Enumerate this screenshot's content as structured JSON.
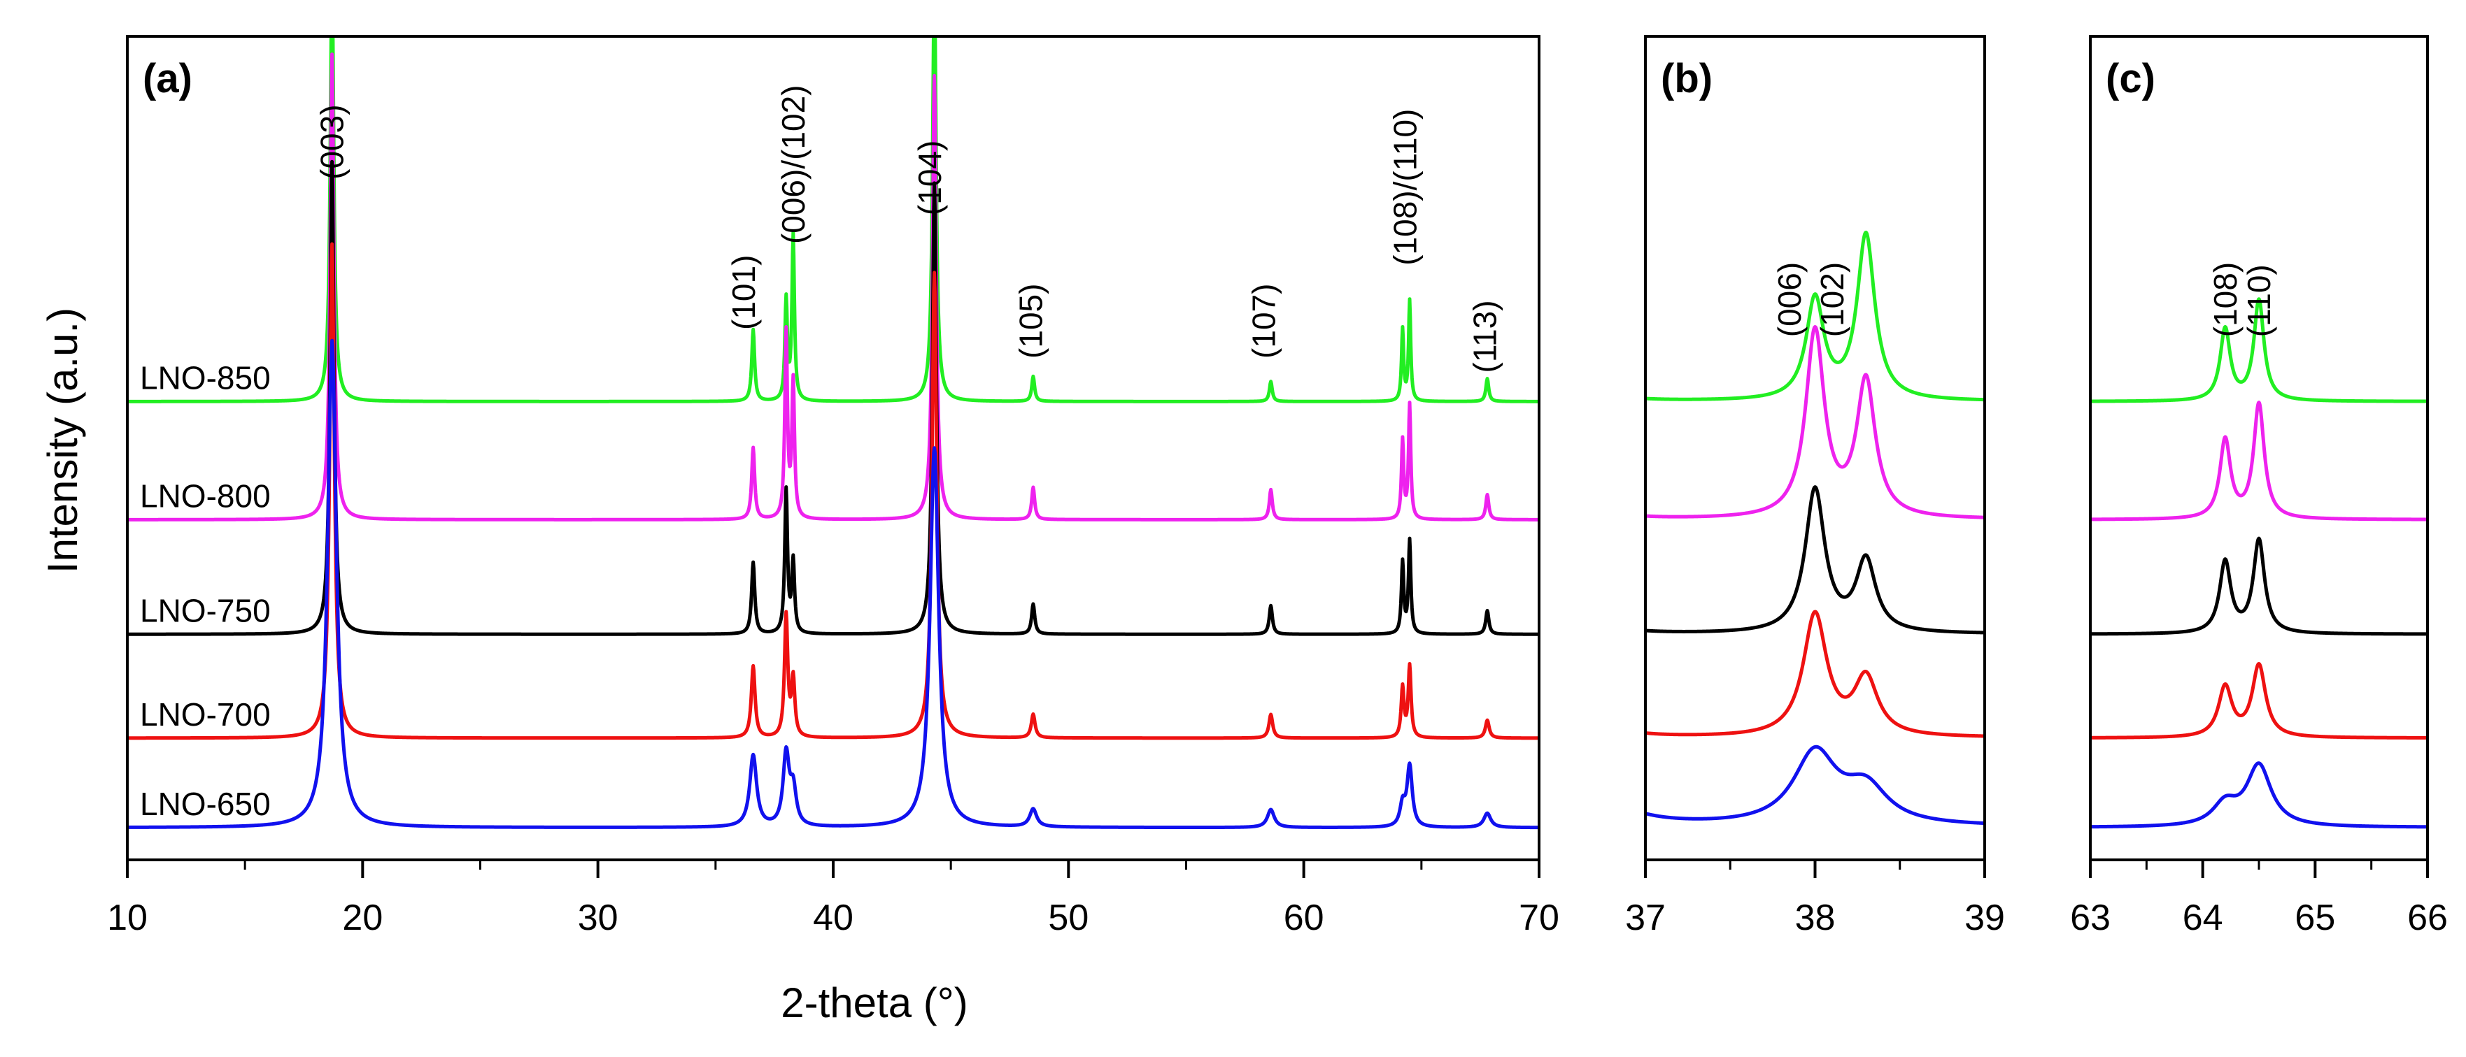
{
  "chart_data": {
    "type": "line",
    "title": "",
    "xlabel": "2-theta (°)",
    "ylabel": "Intensity (a.u.)",
    "series_offset_order": [
      "LNO-650",
      "LNO-700",
      "LNO-750",
      "LNO-800",
      "LNO-850"
    ],
    "series": [
      {
        "name": "LNO-850",
        "color": "#22ee22",
        "baseline": 6.4,
        "broad": 0.9,
        "scale": [
          6.0,
          1.0,
          1.4,
          2.3,
          5.9,
          0.35,
          0.28,
          1.0,
          1.4,
          0.32
        ]
      },
      {
        "name": "LNO-800",
        "color": "#ee22ee",
        "baseline": 4.75,
        "broad": 0.95,
        "scale": [
          6.5,
          1.0,
          2.6,
          1.9,
          6.2,
          0.45,
          0.42,
          1.1,
          1.6,
          0.35
        ]
      },
      {
        "name": "LNO-750",
        "color": "#000000",
        "baseline": 3.15,
        "broad": 1.0,
        "scale": [
          6.6,
          1.0,
          2.0,
          1.0,
          6.3,
          0.42,
          0.4,
          1.0,
          1.3,
          0.33
        ]
      },
      {
        "name": "LNO-700",
        "color": "#ee1111",
        "baseline": 1.7,
        "broad": 1.2,
        "scale": [
          6.9,
          1.0,
          1.7,
          0.8,
          6.5,
          0.33,
          0.33,
          0.7,
          1.0,
          0.25
        ]
      },
      {
        "name": "LNO-650",
        "color": "#1111ee",
        "baseline": 0.45,
        "broad": 2.2,
        "scale": [
          6.8,
          1.0,
          1.0,
          0.5,
          5.3,
          0.25,
          0.25,
          0.3,
          0.85,
          0.2
        ]
      }
    ],
    "peaks_2theta": [
      18.7,
      36.6,
      38.0,
      38.3,
      44.3,
      48.5,
      58.6,
      64.2,
      64.5,
      67.8
    ],
    "panels": [
      {
        "id": "a",
        "label": "(a)",
        "xlim": [
          10,
          70
        ],
        "xticks": [
          10,
          20,
          30,
          40,
          50,
          60,
          70
        ],
        "xtick_labels": [
          "10",
          "20",
          "30",
          "40",
          "50",
          "60",
          "70"
        ],
        "peak_labels": [
          {
            "text": "(003)",
            "x": 18.7,
            "y": 9.5
          },
          {
            "text": "(101)",
            "x": 36.2,
            "y": 7.4
          },
          {
            "text": "(006)/(102)",
            "x": 38.3,
            "y": 8.6
          },
          {
            "text": "(104)",
            "x": 44.1,
            "y": 9.0
          },
          {
            "text": "(105)",
            "x": 48.4,
            "y": 7.0
          },
          {
            "text": "(107)",
            "x": 58.3,
            "y": 7.0
          },
          {
            "text": "(108)/(110)",
            "x": 64.3,
            "y": 8.3
          },
          {
            "text": "(113)",
            "x": 67.7,
            "y": 6.8
          }
        ]
      },
      {
        "id": "b",
        "label": "(b)",
        "xlim": [
          37,
          39
        ],
        "xticks": [
          37,
          38,
          39
        ],
        "xtick_labels": [
          "37",
          "38",
          "39"
        ],
        "peak_labels": [
          {
            "text": "(006)",
            "x": 37.85,
            "y": 7.3
          },
          {
            "text": "(102)",
            "x": 38.1,
            "y": 7.3
          }
        ]
      },
      {
        "id": "c",
        "label": "(c)",
        "xlim": [
          63,
          66
        ],
        "xticks": [
          63,
          64,
          65,
          66
        ],
        "xtick_labels": [
          "63",
          "64",
          "65",
          "66"
        ],
        "peak_labels": [
          {
            "text": "(108)",
            "x": 64.2,
            "y": 7.3
          },
          {
            "text": "(110)",
            "x": 64.5,
            "y": 7.3
          }
        ]
      }
    ],
    "ylim": [
      0,
      11.5
    ],
    "grid": false,
    "legend": "inline labels left of each trace in panel (a)"
  }
}
